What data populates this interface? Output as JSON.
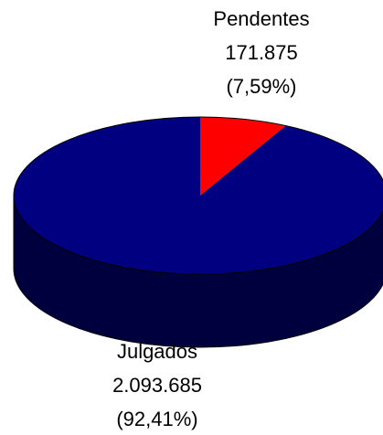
{
  "chart_data": {
    "type": "pie",
    "style": "3d",
    "slices": [
      {
        "label": "Pendentes",
        "value": 171875,
        "value_text": "171.875",
        "percent": 7.59,
        "percent_text": "(7,59%)",
        "color": "#ff0000"
      },
      {
        "label": "Julgados",
        "value": 2093685,
        "value_text": "2.093.685",
        "percent": 92.41,
        "percent_text": "(92,41%)",
        "color": "#000080"
      }
    ],
    "side_color": "#00003f",
    "edge_color": "#000000"
  }
}
